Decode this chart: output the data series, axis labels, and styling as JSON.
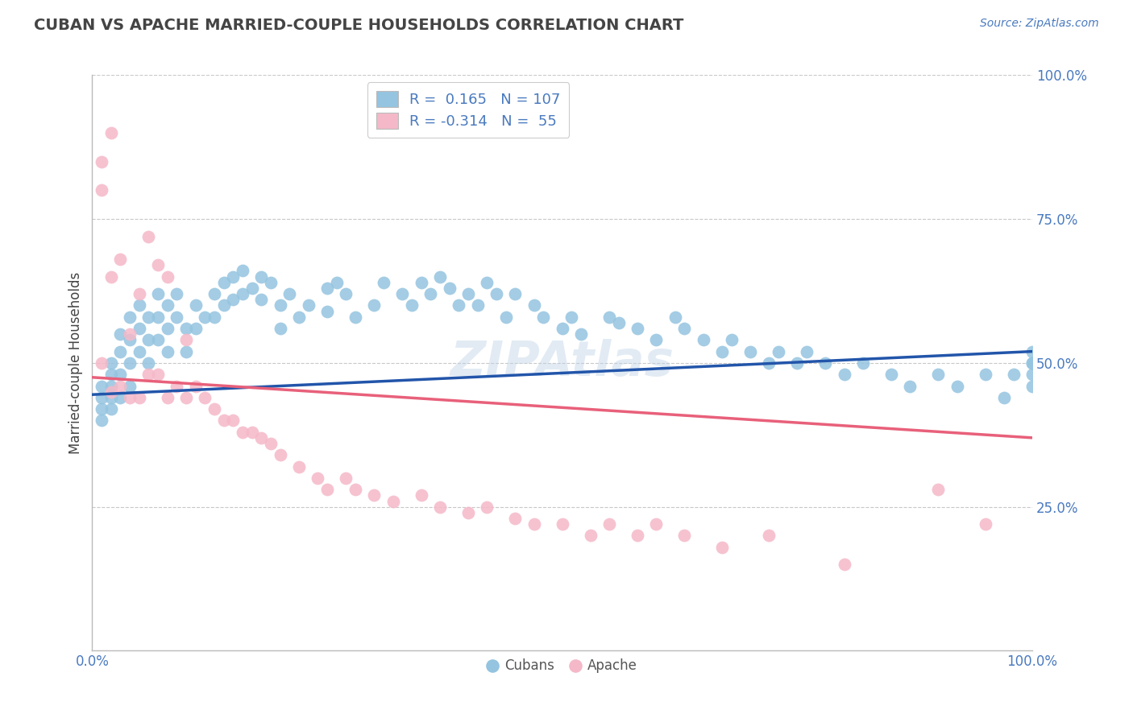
{
  "title": "CUBAN VS APACHE MARRIED-COUPLE HOUSEHOLDS CORRELATION CHART",
  "source": "Source: ZipAtlas.com",
  "ylabel": "Married-couple Households",
  "xlim": [
    0,
    100
  ],
  "ylim": [
    0,
    100
  ],
  "ytick_positions": [
    25,
    50,
    75,
    100
  ],
  "ytick_labels": [
    "25.0%",
    "50.0%",
    "75.0%",
    "100.0%"
  ],
  "xtick_positions": [
    0,
    100
  ],
  "xtick_labels": [
    "0.0%",
    "100.0%"
  ],
  "legend_labels": [
    "Cubans",
    "Apache"
  ],
  "blue_color": "#94c4e0",
  "pink_color": "#f5b8c8",
  "blue_line_color": "#2255aa",
  "pink_line_color": "#e8607a",
  "blue_R": 0.165,
  "blue_N": 107,
  "pink_R": -0.314,
  "pink_N": 55,
  "watermark": "ZIPAtlas",
  "title_color": "#444444",
  "tick_label_color": "#4a7abf",
  "grid_color": "#c8c8c8",
  "background_color": "#ffffff",
  "blue_line_x0": 0,
  "blue_line_y0": 44.5,
  "blue_line_x1": 100,
  "blue_line_y1": 52.0,
  "pink_line_x0": 0,
  "pink_line_y0": 47.5,
  "pink_line_x1": 100,
  "pink_line_y1": 37.0,
  "blue_x": [
    1,
    1,
    1,
    1,
    2,
    2,
    2,
    2,
    2,
    3,
    3,
    3,
    3,
    4,
    4,
    4,
    4,
    5,
    5,
    5,
    6,
    6,
    6,
    7,
    7,
    7,
    8,
    8,
    8,
    9,
    9,
    10,
    10,
    11,
    11,
    12,
    13,
    13,
    14,
    14,
    15,
    15,
    16,
    16,
    17,
    18,
    18,
    19,
    20,
    20,
    21,
    22,
    23,
    25,
    25,
    26,
    27,
    28,
    30,
    31,
    33,
    34,
    35,
    36,
    37,
    38,
    39,
    40,
    41,
    42,
    43,
    44,
    45,
    47,
    48,
    50,
    51,
    52,
    55,
    56,
    58,
    60,
    62,
    63,
    65,
    67,
    68,
    70,
    72,
    73,
    75,
    76,
    78,
    80,
    82,
    85,
    87,
    90,
    92,
    95,
    97,
    98,
    100,
    100,
    100,
    100,
    100
  ],
  "blue_y": [
    46,
    44,
    42,
    40,
    50,
    48,
    46,
    44,
    42,
    55,
    52,
    48,
    44,
    58,
    54,
    50,
    46,
    60,
    56,
    52,
    58,
    54,
    50,
    62,
    58,
    54,
    60,
    56,
    52,
    62,
    58,
    56,
    52,
    60,
    56,
    58,
    62,
    58,
    64,
    60,
    65,
    61,
    66,
    62,
    63,
    65,
    61,
    64,
    60,
    56,
    62,
    58,
    60,
    63,
    59,
    64,
    62,
    58,
    60,
    64,
    62,
    60,
    64,
    62,
    65,
    63,
    60,
    62,
    60,
    64,
    62,
    58,
    62,
    60,
    58,
    56,
    58,
    55,
    58,
    57,
    56,
    54,
    58,
    56,
    54,
    52,
    54,
    52,
    50,
    52,
    50,
    52,
    50,
    48,
    50,
    48,
    46,
    48,
    46,
    48,
    44,
    48,
    46,
    48,
    50,
    52,
    50
  ],
  "pink_x": [
    1,
    1,
    1,
    2,
    2,
    2,
    3,
    3,
    4,
    4,
    5,
    5,
    6,
    6,
    7,
    7,
    8,
    8,
    9,
    10,
    10,
    11,
    12,
    13,
    14,
    15,
    16,
    17,
    18,
    19,
    20,
    22,
    24,
    25,
    27,
    28,
    30,
    32,
    35,
    37,
    40,
    42,
    45,
    47,
    50,
    53,
    55,
    58,
    60,
    63,
    67,
    72,
    80,
    90,
    95
  ],
  "pink_y": [
    85,
    80,
    50,
    90,
    65,
    45,
    68,
    46,
    55,
    44,
    62,
    44,
    72,
    48,
    67,
    48,
    65,
    44,
    46,
    54,
    44,
    46,
    44,
    42,
    40,
    40,
    38,
    38,
    37,
    36,
    34,
    32,
    30,
    28,
    30,
    28,
    27,
    26,
    27,
    25,
    24,
    25,
    23,
    22,
    22,
    20,
    22,
    20,
    22,
    20,
    18,
    20,
    15,
    28,
    22
  ]
}
